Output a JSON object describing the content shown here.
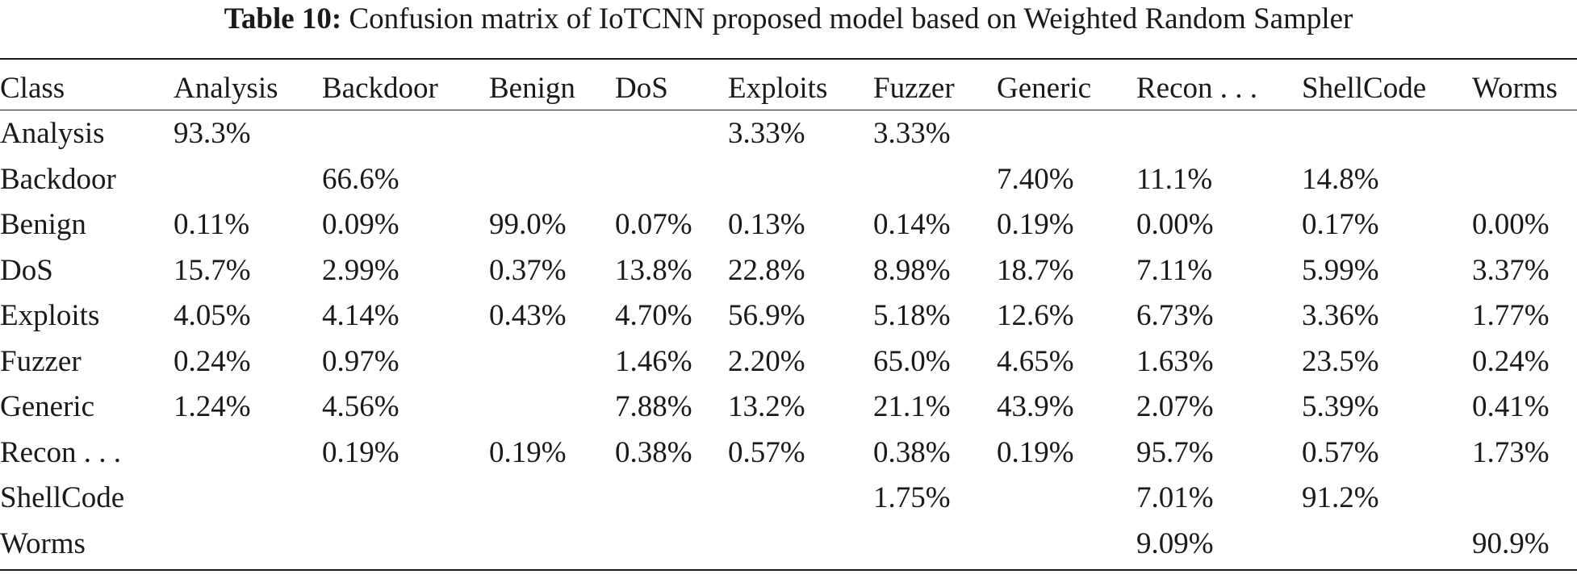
{
  "caption": {
    "label": "Table 10:",
    "text": "Confusion matrix of IoTCNN proposed model based on Weighted Random Sampler"
  },
  "table": {
    "columns": [
      "Class",
      "Analysis",
      "Backdoor",
      "Benign",
      "DoS",
      "Exploits",
      "Fuzzer",
      "Generic",
      "Recon . . .",
      "ShellCode",
      "Worms"
    ],
    "rows": [
      [
        "Analysis",
        "93.3%",
        "",
        "",
        "",
        "3.33%",
        "3.33%",
        "",
        "",
        "",
        ""
      ],
      [
        "Backdoor",
        "",
        "66.6%",
        "",
        "",
        "",
        "",
        "7.40%",
        "11.1%",
        "14.8%",
        ""
      ],
      [
        "Benign",
        "0.11%",
        "0.09%",
        "99.0%",
        "0.07%",
        "0.13%",
        "0.14%",
        "0.19%",
        "0.00%",
        "0.17%",
        "0.00%"
      ],
      [
        "DoS",
        "15.7%",
        "2.99%",
        "0.37%",
        "13.8%",
        "22.8%",
        "8.98%",
        "18.7%",
        "7.11%",
        "5.99%",
        "3.37%"
      ],
      [
        "Exploits",
        "4.05%",
        "4.14%",
        "0.43%",
        "4.70%",
        "56.9%",
        "5.18%",
        "12.6%",
        "6.73%",
        "3.36%",
        "1.77%"
      ],
      [
        "Fuzzer",
        "0.24%",
        "0.97%",
        "",
        "1.46%",
        "2.20%",
        "65.0%",
        "4.65%",
        "1.63%",
        "23.5%",
        "0.24%"
      ],
      [
        "Generic",
        "1.24%",
        "4.56%",
        "",
        "7.88%",
        "13.2%",
        "21.1%",
        "43.9%",
        "2.07%",
        "5.39%",
        "0.41%"
      ],
      [
        "Recon . . .",
        "",
        "0.19%",
        "0.19%",
        "0.38%",
        "0.57%",
        "0.38%",
        "0.19%",
        "95.7%",
        "0.57%",
        "1.73%"
      ],
      [
        "ShellCode",
        "",
        "",
        "",
        "",
        "",
        "1.75%",
        "",
        "7.01%",
        "91.2%",
        ""
      ],
      [
        "Worms",
        "",
        "",
        "",
        "",
        "",
        "",
        "",
        "9.09%",
        "",
        "90.9%"
      ]
    ]
  }
}
